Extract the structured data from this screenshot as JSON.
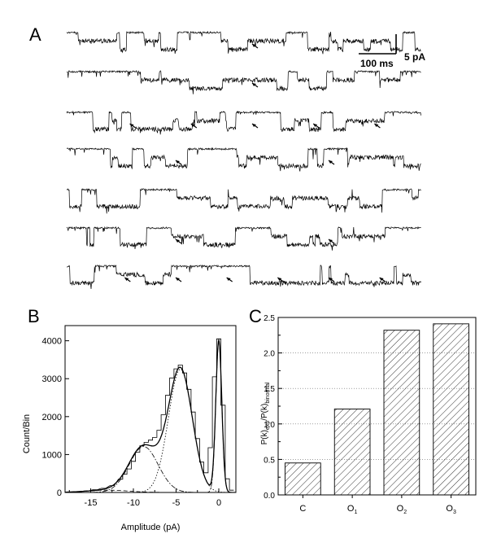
{
  "panels": {
    "a_label": "A",
    "b_label": "B",
    "c_label": "C"
  },
  "scale_bar": {
    "time": "100 ms",
    "current": "5 pA"
  },
  "chart_data": [
    {
      "type": "line",
      "panel": "A",
      "description_free": true,
      "sweeps": 7,
      "levels_pA": [
        0,
        -4.5,
        -9
      ],
      "arrow_counts": [
        1,
        1,
        5,
        2,
        0,
        2,
        6
      ],
      "scale_bar": {
        "time_ms": 100,
        "current_pA": 5
      }
    },
    {
      "type": "line",
      "panel": "B",
      "xlabel": "Amplitude (pA)",
      "ylabel": "Count/Bin",
      "xlim": [
        -18,
        2
      ],
      "ylim": [
        0,
        4400
      ],
      "xticks": [
        -15,
        -10,
        -5,
        0
      ],
      "yticks": [
        0,
        1000,
        2000,
        3000,
        4000
      ],
      "gaussians": [
        {
          "mean": 0,
          "sd": 0.35,
          "peak": 4000,
          "style": "dash-dot"
        },
        {
          "mean": -4.5,
          "sd": 1.4,
          "peak": 3250,
          "style": "dotted"
        },
        {
          "mean": -8.8,
          "sd": 1.7,
          "peak": 1210,
          "style": "dash-dot"
        },
        {
          "mean": -13,
          "sd": 2.5,
          "peak": 60,
          "style": "dashed"
        }
      ],
      "histogram": [
        {
          "x": -17.5,
          "y": 10
        },
        {
          "x": -16.5,
          "y": 20
        },
        {
          "x": -15.5,
          "y": 40
        },
        {
          "x": -14.5,
          "y": 70
        },
        {
          "x": -13.5,
          "y": 110
        },
        {
          "x": -12.5,
          "y": 180
        },
        {
          "x": -11.5,
          "y": 350
        },
        {
          "x": -11.0,
          "y": 480
        },
        {
          "x": -10.5,
          "y": 620
        },
        {
          "x": -10.0,
          "y": 820
        },
        {
          "x": -9.5,
          "y": 1060
        },
        {
          "x": -9.0,
          "y": 1230
        },
        {
          "x": -8.5,
          "y": 1320
        },
        {
          "x": -8.0,
          "y": 1380
        },
        {
          "x": -7.5,
          "y": 1450
        },
        {
          "x": -7.0,
          "y": 1640
        },
        {
          "x": -6.5,
          "y": 2050
        },
        {
          "x": -6.0,
          "y": 2560
        },
        {
          "x": -5.5,
          "y": 3020
        },
        {
          "x": -5.0,
          "y": 3260
        },
        {
          "x": -4.5,
          "y": 3360
        },
        {
          "x": -4.0,
          "y": 3150
        },
        {
          "x": -3.5,
          "y": 2720
        },
        {
          "x": -3.0,
          "y": 2120
        },
        {
          "x": -2.5,
          "y": 1420
        },
        {
          "x": -2.0,
          "y": 800
        },
        {
          "x": -1.5,
          "y": 520
        },
        {
          "x": -1.0,
          "y": 1180
        },
        {
          "x": -0.5,
          "y": 3050
        },
        {
          "x": 0.0,
          "y": 4050
        },
        {
          "x": 0.5,
          "y": 2300
        },
        {
          "x": 1.0,
          "y": 360
        },
        {
          "x": 1.5,
          "y": 60
        }
      ]
    },
    {
      "type": "bar",
      "panel": "C",
      "ylabel": "P(k)exp/P(k)binomial",
      "categories": [
        "C",
        "O1",
        "O2",
        "O3"
      ],
      "values": [
        0.45,
        1.21,
        2.32,
        2.41
      ],
      "ylim": [
        0,
        2.5
      ],
      "yticks": [
        "0.0",
        "0.5",
        "1.0",
        "1.5",
        "2.0",
        "2.5"
      ],
      "bar_fill": "diagonal hatch",
      "grid": "horizontal dotted"
    }
  ]
}
